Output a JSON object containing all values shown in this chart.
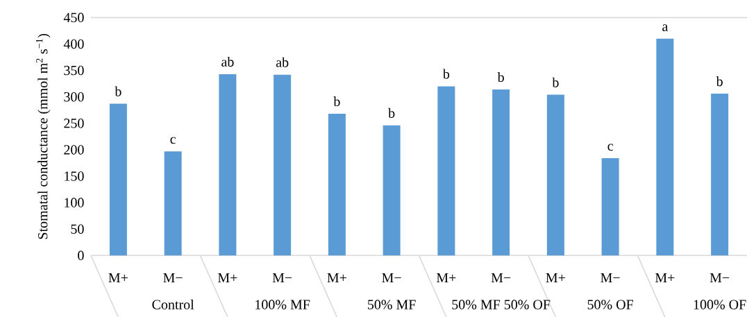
{
  "chart_data": {
    "type": "bar",
    "ylabel": "Stomatal conductance (mmol m$^{2}$ s$^{−1}$)",
    "categories": [
      "M+",
      "M−",
      "M+",
      "M−",
      "M+",
      "M−",
      "M+",
      "M−",
      "M+",
      "M−",
      "M+",
      "M−"
    ],
    "values": [
      287,
      197,
      343,
      342,
      268,
      246,
      320,
      314,
      304,
      184,
      410,
      306
    ],
    "value_labels": [
      "b",
      "c",
      "ab",
      "ab",
      "b",
      "b",
      "b",
      "b",
      "b",
      "c",
      "a",
      "b"
    ],
    "annotations": [
      "Control",
      "100% MF",
      "50% MF",
      "50% MF 50% OF",
      "50% OF",
      "100% OF"
    ],
    "color": "#5b9bd5",
    "ylim": [
      0,
      450
    ],
    "yticks": [
      0,
      50,
      100,
      150,
      200,
      250,
      300,
      350,
      400,
      450
    ]
  }
}
